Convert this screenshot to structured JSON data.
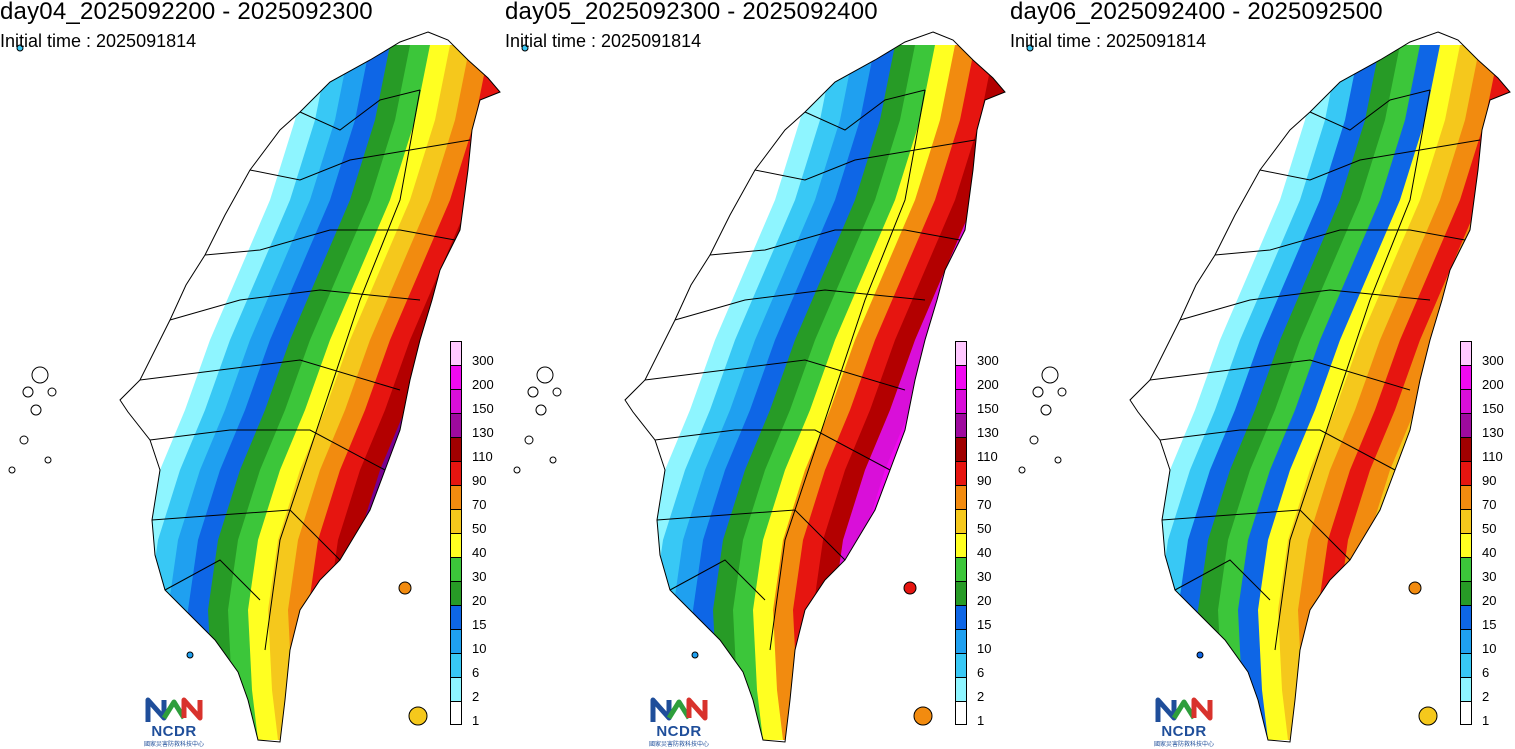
{
  "panels": [
    {
      "title": "day04_2025092200 - 2025092300",
      "initial_time": "Initial time : 2025091814",
      "pattern": [
        "#ffffff",
        "#8ef5ff",
        "#38c8f5",
        "#1fa0f0",
        "#0e66e6",
        "#279b26",
        "#3cc63a",
        "#ffff21",
        "#f5c81c",
        "#f28b0f",
        "#e61510",
        "#b30000",
        "#780090"
      ]
    },
    {
      "title": "day05_2025092300 - 2025092400",
      "initial_time": "Initial time : 2025091814",
      "pattern": [
        "#ffffff",
        "#8ef5ff",
        "#38c8f5",
        "#1fa0f0",
        "#0e66e6",
        "#279b26",
        "#3cc63a",
        "#ffff21",
        "#f28b0f",
        "#e61510",
        "#b30000",
        "#d90fd9",
        "#f00af0"
      ]
    },
    {
      "title": "day06_2025092400 - 2025092500",
      "initial_time": "Initial time : 2025091814",
      "pattern": [
        "#ffffff",
        "#8ef5ff",
        "#38c8f5",
        "#0e66e6",
        "#279b26",
        "#3cc63a",
        "#0e66e6",
        "#ffff21",
        "#f5c81c",
        "#f28b0f",
        "#e61510",
        "#f28b0f",
        "#f5c81c"
      ]
    }
  ],
  "legend": [
    {
      "label": "300",
      "color": "#ffc8ff"
    },
    {
      "label": "200",
      "color": "#f00af0"
    },
    {
      "label": "150",
      "color": "#d90fd9"
    },
    {
      "label": "130",
      "color": "#9e0a9e"
    },
    {
      "label": "110",
      "color": "#a00000"
    },
    {
      "label": "90",
      "color": "#e61510"
    },
    {
      "label": "70",
      "color": "#f28b0f"
    },
    {
      "label": "50",
      "color": "#f5c81c"
    },
    {
      "label": "40",
      "color": "#ffff21"
    },
    {
      "label": "30",
      "color": "#3cc63a"
    },
    {
      "label": "20",
      "color": "#279b26"
    },
    {
      "label": "15",
      "color": "#0e66e6"
    },
    {
      "label": "10",
      "color": "#1fa0f0"
    },
    {
      "label": "6",
      "color": "#38c8f5"
    },
    {
      "label": "2",
      "color": "#8ef5ff"
    },
    {
      "label": "1",
      "color": "#ffffff"
    }
  ],
  "logo": {
    "text": "NCDR",
    "subtext": "國家災害防救科技中心"
  },
  "icons": {
    "logo": "ncdr-logo-icon"
  }
}
